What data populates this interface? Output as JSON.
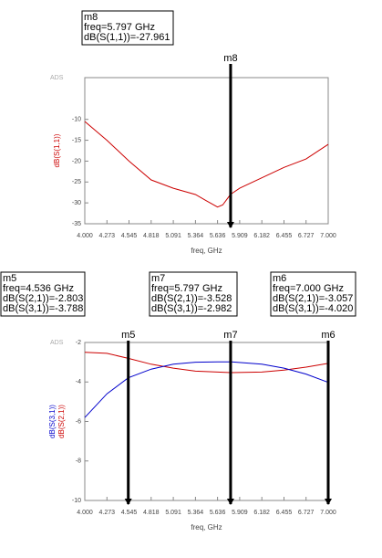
{
  "chart_data": [
    {
      "type": "line",
      "brand": "ADS",
      "x_label": "freq, GHz",
      "y_labels": [
        {
          "text": "dB(S(1,1))",
          "color": "#cc0000"
        }
      ],
      "xlim": [
        4.0,
        7.0
      ],
      "xticks": [
        {
          "value": 4.0,
          "label": "4.000"
        },
        4.273,
        4.545,
        4.818,
        5.091,
        5.364,
        5.636,
        5.909,
        6.182,
        6.455,
        6.727,
        {
          "value": 7.0,
          "label": "7.000"
        }
      ],
      "ylim": [
        -35,
        0
      ],
      "yticks": [
        -35,
        -30,
        -25,
        -20,
        -15,
        -10
      ],
      "x": [
        4.0,
        4.273,
        4.545,
        4.818,
        5.091,
        5.364,
        5.5,
        5.636,
        5.7,
        5.797,
        5.909,
        6.182,
        6.455,
        6.727,
        7.0
      ],
      "series": [
        {
          "name": "dB(S(1,1))",
          "color": "#cc0000",
          "values": [
            -10.5,
            -15,
            -20,
            -24.5,
            -26.5,
            -28,
            -29.5,
            -31,
            -30.5,
            -27.961,
            -26.5,
            -24,
            -21.5,
            -19.5,
            -16
          ]
        }
      ],
      "markers": [
        {
          "name": "m8",
          "x": 5.797,
          "readout": [
            "freq=5.797 GHz",
            "dB(S(1,1))=-27.961"
          ]
        }
      ]
    },
    {
      "type": "line",
      "brand": "ADS",
      "x_label": "freq, GHz",
      "y_labels": [
        {
          "text": "dB(S(3,1))",
          "color": "#0000cc"
        },
        {
          "text": "dB(S(2,1))",
          "color": "#cc0000"
        }
      ],
      "xlim": [
        4.0,
        7.0
      ],
      "xticks": [
        {
          "value": 4.0,
          "label": "4.000"
        },
        4.273,
        4.545,
        4.818,
        5.091,
        5.364,
        5.636,
        5.909,
        6.182,
        6.455,
        6.727,
        {
          "value": 7.0,
          "label": "7.000"
        }
      ],
      "ylim": [
        -10,
        -2
      ],
      "yticks": [
        -10,
        -8,
        -6,
        -4,
        -2
      ],
      "x": [
        4.0,
        4.273,
        4.536,
        4.818,
        5.091,
        5.364,
        5.636,
        5.797,
        6.182,
        6.455,
        6.727,
        7.0
      ],
      "series": [
        {
          "name": "dB(S(2,1))",
          "color": "#cc0000",
          "values": [
            -2.5,
            -2.55,
            -2.803,
            -3.1,
            -3.3,
            -3.45,
            -3.5,
            -3.528,
            -3.5,
            -3.4,
            -3.25,
            -3.057
          ]
        },
        {
          "name": "dB(S(3,1))",
          "color": "#0000cc",
          "values": [
            -5.8,
            -4.6,
            -3.788,
            -3.35,
            -3.1,
            -3.0,
            -2.98,
            -2.982,
            -3.1,
            -3.3,
            -3.6,
            -4.02
          ]
        }
      ],
      "markers": [
        {
          "name": "m5",
          "x": 4.536,
          "readout": [
            "freq=4.536 GHz",
            "dB(S(2,1))=-2.803",
            "dB(S(3,1))=-3.788"
          ]
        },
        {
          "name": "m7",
          "x": 5.797,
          "readout": [
            "freq=5.797 GHz",
            "dB(S(2,1))=-3.528",
            "dB(S(3,1))=-2.982"
          ]
        },
        {
          "name": "m6",
          "x": 7.0,
          "readout": [
            "freq=7.000 GHz",
            "dB(S(2,1))=-3.057",
            "dB(S(3,1))=-4.020"
          ]
        }
      ]
    }
  ]
}
